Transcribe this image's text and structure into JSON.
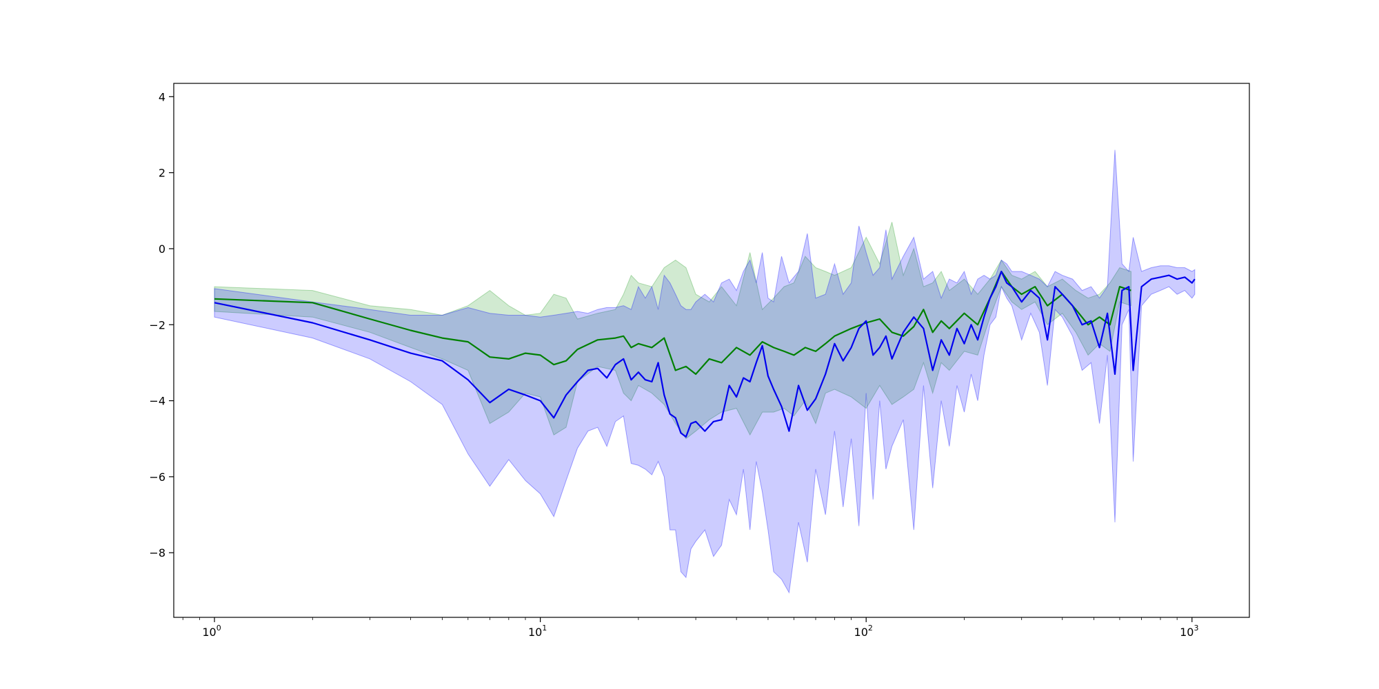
{
  "chart_data": {
    "type": "line",
    "title": "",
    "xlabel": "",
    "ylabel": "",
    "xscale": "log",
    "xlim": [
      0.75,
      1500
    ],
    "ylim": [
      -9.7,
      4.35
    ],
    "grid": false,
    "legend": "none",
    "x_ticks": [
      {
        "base": "10",
        "exp": "0",
        "value": 1
      },
      {
        "base": "10",
        "exp": "1",
        "value": 10
      },
      {
        "base": "10",
        "exp": "2",
        "value": 100
      },
      {
        "base": "10",
        "exp": "3",
        "value": 1000
      }
    ],
    "y_ticks": [
      {
        "label": "4",
        "value": 4
      },
      {
        "label": "2",
        "value": 2
      },
      {
        "label": "0",
        "value": 0
      },
      {
        "label": "−2",
        "value": -2
      },
      {
        "label": "−4",
        "value": -4
      },
      {
        "label": "−6",
        "value": -6
      },
      {
        "label": "−8",
        "value": -8
      }
    ],
    "series": [
      {
        "color": "#008000",
        "band_color": "#2ca02c",
        "band_opacity": 0.22,
        "x": [
          1,
          2,
          3,
          4,
          5,
          6,
          7,
          8,
          9,
          10,
          11,
          12,
          13,
          15,
          17,
          18,
          19,
          20,
          22,
          24,
          26,
          28,
          30,
          33,
          36,
          40,
          44,
          48,
          52,
          56,
          60,
          65,
          70,
          75,
          80,
          90,
          100,
          110,
          120,
          130,
          140,
          150,
          160,
          170,
          180,
          200,
          220,
          240,
          260,
          280,
          300,
          330,
          360,
          400,
          440,
          480,
          520,
          560,
          600,
          650
        ],
        "y": [
          -1.32,
          -1.42,
          -1.85,
          -2.15,
          -2.35,
          -2.45,
          -2.85,
          -2.9,
          -2.75,
          -2.8,
          -3.05,
          -2.95,
          -2.65,
          -2.4,
          -2.35,
          -2.3,
          -2.6,
          -2.5,
          -2.6,
          -2.35,
          -3.2,
          -3.1,
          -3.3,
          -2.9,
          -3.0,
          -2.6,
          -2.8,
          -2.45,
          -2.6,
          -2.7,
          -2.8,
          -2.6,
          -2.7,
          -2.5,
          -2.3,
          -2.1,
          -1.95,
          -1.85,
          -2.2,
          -2.3,
          -2.05,
          -1.6,
          -2.2,
          -1.9,
          -2.1,
          -1.7,
          -2.0,
          -1.3,
          -0.6,
          -1.0,
          -1.2,
          -1.0,
          -1.5,
          -1.2,
          -1.6,
          -2.0,
          -1.8,
          -2.0,
          -1.0,
          -1.1
        ],
        "upper": [
          -1.0,
          -1.1,
          -1.5,
          -1.6,
          -1.75,
          -1.5,
          -1.1,
          -1.5,
          -1.75,
          -1.7,
          -1.2,
          -1.3,
          -1.85,
          -1.7,
          -1.6,
          -1.2,
          -0.7,
          -0.9,
          -1.0,
          -0.5,
          -0.3,
          -0.5,
          -1.2,
          -1.4,
          -1.0,
          -1.5,
          -0.1,
          -1.6,
          -1.3,
          -1.0,
          -0.9,
          -0.2,
          -0.5,
          -0.6,
          -0.7,
          -0.5,
          0.3,
          -0.4,
          0.7,
          -0.7,
          0.0,
          -1.0,
          -0.9,
          -0.6,
          -1.1,
          -0.8,
          -1.2,
          -0.8,
          -0.3,
          -0.7,
          -0.8,
          -0.6,
          -1.0,
          -0.8,
          -1.1,
          -1.3,
          -1.2,
          -0.9,
          -0.5,
          -0.6
        ],
        "lower": [
          -1.65,
          -1.8,
          -2.2,
          -2.6,
          -2.9,
          -3.2,
          -4.6,
          -4.3,
          -3.8,
          -3.9,
          -4.9,
          -4.7,
          -3.5,
          -3.1,
          -3.2,
          -3.8,
          -4.0,
          -3.6,
          -3.8,
          -4.1,
          -4.6,
          -5.0,
          -4.8,
          -4.5,
          -4.3,
          -4.2,
          -4.9,
          -4.3,
          -4.3,
          -4.2,
          -4.4,
          -4.0,
          -4.6,
          -3.8,
          -3.7,
          -3.9,
          -4.2,
          -3.6,
          -4.1,
          -3.9,
          -3.7,
          -3.0,
          -3.8,
          -3.0,
          -3.2,
          -2.7,
          -2.8,
          -1.8,
          -1.0,
          -1.4,
          -1.6,
          -1.4,
          -2.0,
          -1.7,
          -2.2,
          -2.8,
          -2.5,
          -2.7,
          -1.4,
          -1.5
        ]
      },
      {
        "color": "#0000ee",
        "band_color": "#0000ff",
        "band_opacity": 0.2,
        "x": [
          1,
          2,
          3,
          4,
          5,
          6,
          7,
          8,
          9,
          10,
          11,
          12,
          13,
          14,
          15,
          16,
          17,
          18,
          19,
          20,
          21,
          22,
          23,
          24,
          25,
          26,
          27,
          28,
          29,
          30,
          32,
          34,
          36,
          38,
          40,
          42,
          44,
          46,
          48,
          50,
          52,
          55,
          58,
          62,
          66,
          70,
          75,
          80,
          85,
          90,
          95,
          100,
          105,
          110,
          115,
          120,
          130,
          140,
          150,
          160,
          170,
          180,
          190,
          200,
          210,
          220,
          230,
          240,
          250,
          260,
          270,
          280,
          300,
          320,
          340,
          360,
          380,
          400,
          430,
          460,
          490,
          520,
          550,
          580,
          610,
          640,
          660,
          700,
          750,
          800,
          850,
          900,
          950,
          1000,
          1020
        ],
        "y": [
          -1.42,
          -1.95,
          -2.4,
          -2.75,
          -2.95,
          -3.45,
          -4.05,
          -3.7,
          -3.85,
          -4.0,
          -4.45,
          -3.85,
          -3.5,
          -3.2,
          -3.15,
          -3.4,
          -3.05,
          -2.9,
          -3.45,
          -3.25,
          -3.45,
          -3.5,
          -3.0,
          -3.85,
          -4.35,
          -4.45,
          -4.85,
          -4.95,
          -4.6,
          -4.55,
          -4.8,
          -4.55,
          -4.5,
          -3.6,
          -3.9,
          -3.4,
          -3.5,
          -3.0,
          -2.55,
          -3.35,
          -3.7,
          -4.15,
          -4.8,
          -3.6,
          -4.25,
          -3.95,
          -3.3,
          -2.5,
          -2.95,
          -2.6,
          -2.1,
          -1.9,
          -2.8,
          -2.6,
          -2.3,
          -2.9,
          -2.2,
          -1.8,
          -2.1,
          -3.2,
          -2.4,
          -2.8,
          -2.1,
          -2.5,
          -2.0,
          -2.4,
          -1.8,
          -1.3,
          -1.0,
          -0.6,
          -0.9,
          -1.0,
          -1.4,
          -1.1,
          -1.3,
          -2.4,
          -1.0,
          -1.2,
          -1.5,
          -2.0,
          -1.9,
          -2.6,
          -1.7,
          -3.3,
          -1.1,
          -1.0,
          -3.2,
          -1.0,
          -0.8,
          -0.75,
          -0.7,
          -0.8,
          -0.75,
          -0.9,
          -0.8
        ],
        "upper": [
          -1.05,
          -1.4,
          -1.6,
          -1.75,
          -1.75,
          -1.55,
          -1.7,
          -1.75,
          -1.75,
          -1.8,
          -1.75,
          -1.7,
          -1.65,
          -1.7,
          -1.6,
          -1.55,
          -1.55,
          -1.5,
          -1.6,
          -1.0,
          -1.3,
          -1.0,
          -1.6,
          -0.7,
          -0.9,
          -1.2,
          -1.5,
          -1.6,
          -1.6,
          -1.4,
          -1.2,
          -1.4,
          -0.9,
          -0.8,
          -1.1,
          -0.6,
          -0.3,
          -0.9,
          -0.1,
          -1.3,
          -1.4,
          -0.2,
          -0.9,
          -0.6,
          0.4,
          -1.3,
          -1.2,
          -0.4,
          -1.2,
          -0.9,
          0.6,
          -0.1,
          -0.7,
          -0.5,
          0.5,
          -0.8,
          -0.2,
          0.3,
          -0.8,
          -0.6,
          -1.3,
          -0.8,
          -0.9,
          -0.6,
          -1.2,
          -0.8,
          -0.7,
          -0.8,
          -0.7,
          -0.3,
          -0.4,
          -0.6,
          -0.6,
          -0.7,
          -0.8,
          -1.0,
          -0.6,
          -0.7,
          -0.8,
          -1.1,
          -1.0,
          -1.3,
          -1.0,
          2.6,
          -0.4,
          -0.6,
          0.3,
          -0.6,
          -0.5,
          -0.45,
          -0.45,
          -0.5,
          -0.5,
          -0.6,
          -0.55
        ],
        "lower": [
          -1.8,
          -2.35,
          -2.9,
          -3.5,
          -4.1,
          -5.4,
          -6.25,
          -5.55,
          -6.1,
          -6.45,
          -7.05,
          -6.1,
          -5.25,
          -4.8,
          -4.7,
          -5.2,
          -4.55,
          -4.4,
          -5.65,
          -5.7,
          -5.8,
          -5.95,
          -5.6,
          -6.0,
          -7.4,
          -7.4,
          -8.5,
          -8.65,
          -7.9,
          -7.7,
          -7.4,
          -8.1,
          -7.8,
          -6.6,
          -7.0,
          -5.8,
          -7.4,
          -5.6,
          -6.4,
          -7.4,
          -8.5,
          -8.7,
          -9.05,
          -7.2,
          -8.25,
          -5.8,
          -7.0,
          -4.8,
          -6.8,
          -5.0,
          -7.3,
          -3.8,
          -6.6,
          -4.0,
          -5.8,
          -5.2,
          -4.5,
          -7.4,
          -3.6,
          -6.3,
          -4.0,
          -5.2,
          -3.6,
          -4.3,
          -3.3,
          -4.0,
          -2.8,
          -2.0,
          -1.8,
          -1.0,
          -1.3,
          -1.5,
          -2.4,
          -1.7,
          -2.2,
          -3.6,
          -1.6,
          -1.8,
          -2.3,
          -3.2,
          -3.0,
          -4.6,
          -2.8,
          -7.2,
          -2.0,
          -1.6,
          -5.6,
          -1.5,
          -1.2,
          -1.1,
          -1.0,
          -1.2,
          -1.1,
          -1.3,
          -1.2
        ]
      }
    ]
  },
  "colors": {
    "axis": "#000000",
    "background": "#ffffff"
  }
}
